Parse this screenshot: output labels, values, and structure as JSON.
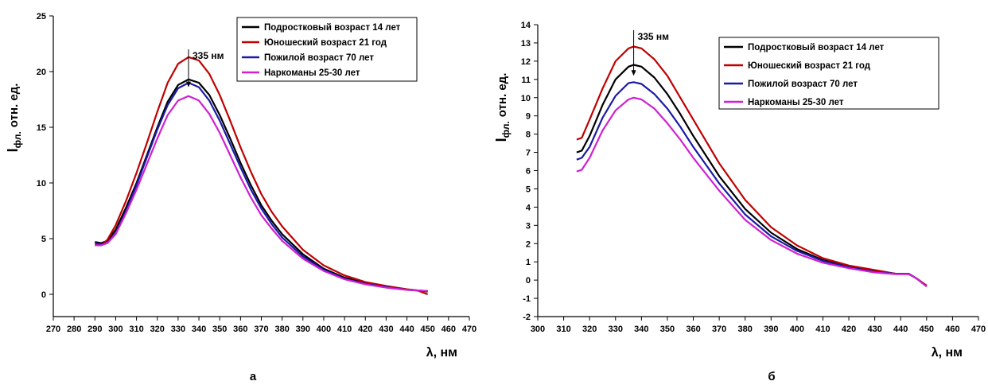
{
  "chart_data": [
    {
      "type": "line",
      "panel_label": "а",
      "xlabel": "λ, нм",
      "ylabel_main": "I",
      "ylabel_sub": "фл.",
      "ylabel_rest": "отн. ед.",
      "xlim": [
        270,
        470
      ],
      "ylim": [
        -2,
        25
      ],
      "xticks": [
        270,
        280,
        290,
        300,
        310,
        320,
        330,
        340,
        350,
        360,
        370,
        380,
        390,
        400,
        410,
        420,
        430,
        440,
        450,
        460,
        470
      ],
      "yticks": [
        0,
        5,
        10,
        15,
        20,
        25
      ],
      "legend_position": "top-right",
      "annotation": {
        "text": "335 нм",
        "x": 335,
        "y_from": 22,
        "y_to": 18.6
      },
      "series": [
        {
          "name": "Подростковый возраст 14 лет",
          "color": "#000000",
          "x": [
            290,
            293,
            296,
            300,
            305,
            310,
            315,
            320,
            325,
            330,
            335,
            340,
            345,
            350,
            355,
            360,
            365,
            370,
            375,
            380,
            390,
            400,
            410,
            420,
            430,
            440,
            445,
            450
          ],
          "y": [
            4.7,
            4.6,
            4.8,
            5.8,
            7.8,
            10.0,
            12.5,
            15.0,
            17.3,
            18.8,
            19.3,
            19.0,
            17.9,
            16.1,
            14.0,
            11.8,
            9.8,
            8.0,
            6.6,
            5.4,
            3.6,
            2.3,
            1.5,
            1.0,
            0.7,
            0.45,
            0.35,
            0.25
          ]
        },
        {
          "name": "Юношеский возраст  21 год",
          "color": "#c00000",
          "x": [
            290,
            293,
            296,
            300,
            305,
            310,
            315,
            320,
            325,
            330,
            335,
            340,
            345,
            350,
            355,
            360,
            365,
            370,
            375,
            380,
            390,
            400,
            410,
            420,
            430,
            440,
            445,
            450
          ],
          "y": [
            4.5,
            4.4,
            4.9,
            6.2,
            8.4,
            10.9,
            13.6,
            16.4,
            19.0,
            20.7,
            21.3,
            21.0,
            19.8,
            17.9,
            15.6,
            13.2,
            11.0,
            9.0,
            7.4,
            6.1,
            4.0,
            2.6,
            1.7,
            1.1,
            0.75,
            0.45,
            0.35,
            0.0
          ]
        },
        {
          "name": "Пожилой возраст 70 лет",
          "color": "#1a1aa6",
          "x": [
            290,
            293,
            296,
            300,
            305,
            310,
            315,
            320,
            325,
            330,
            335,
            340,
            345,
            350,
            355,
            360,
            365,
            370,
            375,
            380,
            390,
            400,
            410,
            420,
            430,
            440,
            445,
            450
          ],
          "y": [
            4.6,
            4.5,
            4.6,
            5.5,
            7.5,
            9.8,
            12.3,
            14.8,
            17.0,
            18.5,
            19.0,
            18.6,
            17.4,
            15.6,
            13.5,
            11.4,
            9.4,
            7.7,
            6.3,
            5.1,
            3.4,
            2.2,
            1.4,
            0.95,
            0.65,
            0.4,
            0.35,
            0.3
          ]
        },
        {
          "name": "Наркоманы 25-30 лет",
          "color": "#d11fd1",
          "x": [
            290,
            293,
            296,
            300,
            305,
            310,
            315,
            320,
            325,
            330,
            335,
            340,
            345,
            350,
            355,
            360,
            365,
            370,
            375,
            380,
            390,
            400,
            410,
            420,
            430,
            440,
            445,
            450
          ],
          "y": [
            4.4,
            4.4,
            4.6,
            5.4,
            7.3,
            9.4,
            11.7,
            14.0,
            16.1,
            17.4,
            17.8,
            17.4,
            16.2,
            14.5,
            12.5,
            10.5,
            8.7,
            7.1,
            5.9,
            4.8,
            3.2,
            2.1,
            1.35,
            0.9,
            0.6,
            0.4,
            0.35,
            0.3
          ]
        }
      ]
    },
    {
      "type": "line",
      "panel_label": "б",
      "xlabel": "λ, нм",
      "ylabel_main": "I",
      "ylabel_sub": "фл.",
      "ylabel_rest": "отн. ед.",
      "xlim": [
        300,
        470
      ],
      "ylim": [
        -2,
        14
      ],
      "xticks": [
        300,
        310,
        320,
        330,
        340,
        350,
        360,
        370,
        380,
        390,
        400,
        410,
        420,
        430,
        440,
        450,
        460,
        470
      ],
      "yticks": [
        -2,
        -1,
        0,
        1,
        2,
        3,
        4,
        5,
        6,
        7,
        8,
        9,
        10,
        11,
        12,
        13,
        14
      ],
      "legend_position": "top-right",
      "annotation": {
        "text": "335 нм",
        "x": 337,
        "y_from": 13.7,
        "y_to": 11.2
      },
      "series": [
        {
          "name": "Подростковый возраст 14 лет",
          "color": "#000000",
          "x": [
            315,
            317,
            320,
            325,
            330,
            335,
            337,
            340,
            345,
            350,
            355,
            360,
            365,
            370,
            380,
            390,
            400,
            410,
            420,
            430,
            438,
            443,
            446,
            450
          ],
          "y": [
            7.0,
            7.1,
            7.9,
            9.6,
            11.0,
            11.7,
            11.8,
            11.7,
            11.1,
            10.2,
            9.1,
            7.9,
            6.8,
            5.7,
            3.9,
            2.6,
            1.7,
            1.1,
            0.75,
            0.5,
            0.35,
            0.35,
            0.1,
            -0.3
          ]
        },
        {
          "name": "Юношеский возраст 21 год",
          "color": "#c00000",
          "x": [
            315,
            317,
            320,
            325,
            330,
            335,
            337,
            340,
            345,
            350,
            355,
            360,
            365,
            370,
            380,
            390,
            400,
            410,
            420,
            430,
            438,
            443,
            446,
            450
          ],
          "y": [
            7.7,
            7.8,
            8.8,
            10.5,
            12.0,
            12.7,
            12.8,
            12.7,
            12.1,
            11.2,
            10.0,
            8.8,
            7.6,
            6.4,
            4.4,
            2.9,
            1.9,
            1.2,
            0.8,
            0.55,
            0.35,
            0.35,
            0.1,
            -0.3
          ]
        },
        {
          "name": "Пожилой возраст 70 лет",
          "color": "#1a1aa6",
          "x": [
            315,
            317,
            320,
            325,
            330,
            335,
            337,
            340,
            345,
            350,
            355,
            360,
            365,
            370,
            380,
            390,
            400,
            410,
            420,
            430,
            438,
            443,
            446,
            450
          ],
          "y": [
            6.6,
            6.7,
            7.3,
            8.9,
            10.1,
            10.8,
            10.85,
            10.75,
            10.2,
            9.4,
            8.4,
            7.3,
            6.3,
            5.3,
            3.6,
            2.4,
            1.6,
            1.05,
            0.7,
            0.45,
            0.35,
            0.35,
            0.1,
            -0.35
          ]
        },
        {
          "name": "Наркоманы 25-30 лет",
          "color": "#d11fd1",
          "x": [
            315,
            317,
            320,
            325,
            330,
            335,
            337,
            340,
            345,
            350,
            355,
            360,
            365,
            370,
            380,
            390,
            400,
            410,
            420,
            430,
            438,
            443,
            446,
            450
          ],
          "y": [
            5.95,
            6.05,
            6.7,
            8.2,
            9.3,
            9.9,
            10.0,
            9.9,
            9.4,
            8.6,
            7.7,
            6.7,
            5.8,
            4.9,
            3.3,
            2.2,
            1.45,
            0.95,
            0.65,
            0.42,
            0.33,
            0.33,
            0.1,
            -0.35
          ]
        }
      ]
    }
  ]
}
